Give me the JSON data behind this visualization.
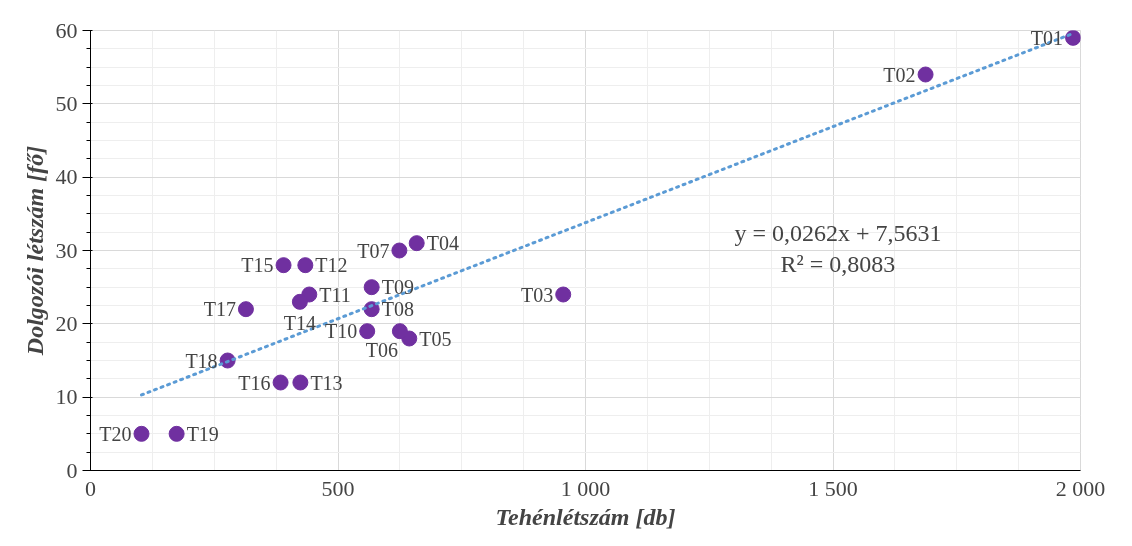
{
  "chart_data": {
    "type": "scatter",
    "xlabel": "Tehénlétszám [db]",
    "ylabel": "Dolgozói létszám [fő]",
    "xlim": [
      0,
      2000
    ],
    "ylim": [
      0,
      60
    ],
    "xticks": [
      0,
      {
        "value": 500,
        "label": "500"
      },
      {
        "value": 1000,
        "label": "1 000"
      },
      {
        "value": 1500,
        "label": "1 500"
      },
      {
        "value": 2000,
        "label": "2 000"
      }
    ],
    "yticks": [
      0,
      10,
      20,
      30,
      40,
      50,
      60
    ],
    "grid": true,
    "series": [
      {
        "marker": "circle",
        "color": "#7030a0",
        "x": [
          1985,
          1687,
          955,
          659,
          644,
          625,
          624,
          568,
          568,
          559,
          442,
          434,
          424,
          423,
          390,
          384,
          314,
          277,
          174,
          103
        ],
        "values": [
          59,
          54,
          24,
          31,
          18,
          19,
          30,
          22,
          25,
          19,
          24,
          28,
          12,
          23,
          28,
          12,
          22,
          15,
          5,
          5
        ]
      },
      {
        "type": "line",
        "line_style": "dotted",
        "color": "#5b9bd5",
        "x": [
          103,
          1985
        ],
        "values": [
          10.3,
          59.6
        ]
      }
    ],
    "annotations": [
      {
        "text": "T01",
        "x": 1985,
        "y": 59
      },
      {
        "text": "T02",
        "x": 1687,
        "y": 54
      },
      {
        "text": "T03",
        "x": 955,
        "y": 24
      },
      {
        "text": "T04",
        "x": 659,
        "y": 31
      },
      {
        "text": "T05",
        "x": 644,
        "y": 18
      },
      {
        "text": "T06",
        "x": 625,
        "y": 19
      },
      {
        "text": "T07",
        "x": 624,
        "y": 30
      },
      {
        "text": "T08",
        "x": 568,
        "y": 22
      },
      {
        "text": "T09",
        "x": 568,
        "y": 25
      },
      {
        "text": "T10",
        "x": 559,
        "y": 19
      },
      {
        "text": "T11",
        "x": 442,
        "y": 24
      },
      {
        "text": "T12",
        "x": 434,
        "y": 28
      },
      {
        "text": "T13",
        "x": 424,
        "y": 12
      },
      {
        "text": "T14",
        "x": 423,
        "y": 23
      },
      {
        "text": "T15",
        "x": 390,
        "y": 28
      },
      {
        "text": "T16",
        "x": 384,
        "y": 12
      },
      {
        "text": "T17",
        "x": 314,
        "y": 22
      },
      {
        "text": "T18",
        "x": 277,
        "y": 15
      },
      {
        "text": "T19",
        "x": 174,
        "y": 5
      },
      {
        "text": "T20",
        "x": 103,
        "y": 5
      },
      "y = 0,0262x + 7,5631\nR² = 0,8083"
    ]
  }
}
